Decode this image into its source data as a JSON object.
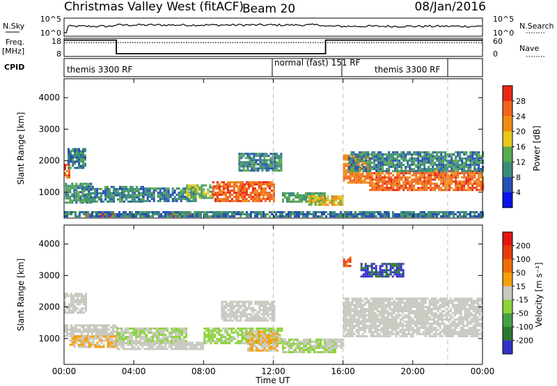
{
  "header": {
    "station": "Christmas Valley West (fitACF)",
    "beam": "Beam 20",
    "date": "08/Jan/2016"
  },
  "nsky_panel": {
    "left_label": "N.Sky",
    "right_label": "N.Search",
    "left_ticks": [
      "10^5",
      "10^0"
    ],
    "right_ticks": [
      "10^5",
      "10^0"
    ]
  },
  "freq_panel": {
    "label_line1": "Freq.",
    "label_line2": "[MHz]",
    "left_ticks": [
      "18",
      "8"
    ],
    "right_ticks": [
      "60",
      "0"
    ],
    "right_label": "Nave"
  },
  "cpid_panel": {
    "label": "CPID",
    "segments": [
      "themis 3300 RF",
      "normal (fast) 151 RF",
      "themis 3300 RF"
    ]
  },
  "power_panel": {
    "ylabel": "Slant Range [km]",
    "yticks": [
      "1000",
      "2000",
      "3000",
      "4000"
    ],
    "colorbar_label": "Power [dB]",
    "colorbar_ticks": [
      "4",
      "8",
      "12",
      "16",
      "20",
      "24",
      "28"
    ]
  },
  "velocity_panel": {
    "ylabel": "Slant Range [km]",
    "yticks": [
      "1000",
      "2000",
      "3000",
      "4000"
    ],
    "colorbar_label": "Velocity [m s⁻¹]",
    "colorbar_ticks": [
      "200",
      "100",
      "50",
      "15",
      "-15",
      "-50",
      "-100",
      "-200"
    ]
  },
  "xaxis": {
    "label": "Time UT",
    "ticks": [
      "00:00",
      "04:00",
      "08:00",
      "12:00",
      "16:00",
      "20:00",
      "00:00"
    ]
  },
  "chart_data": {
    "type": "heatmap",
    "title": "Christmas Valley West (fitACF) Beam 20 08/Jan/2016",
    "x_range_hours": [
      0,
      24
    ],
    "y_range_km": [
      180,
      4600
    ],
    "x_ticks_hours": [
      0,
      4,
      8,
      12,
      16,
      20,
      24
    ],
    "y_ticks_km": [
      1000,
      2000,
      3000,
      4000
    ],
    "cpid_segments": [
      {
        "name": "themis 3300 RF",
        "start_h": 0,
        "end_h": 12
      },
      {
        "name": "normal (fast) 151 RF",
        "start_h": 12,
        "end_h": 16
      },
      {
        "name": "themis 3300 RF",
        "start_h": 16,
        "end_h": 24
      }
    ],
    "mode_change_hours": [
      12,
      16,
      22
    ],
    "frequency_mhz": [
      {
        "start_h": 0,
        "end_h": 3.0,
        "value": 17
      },
      {
        "start_h": 3.0,
        "end_h": 15.0,
        "value": 9.5
      },
      {
        "start_h": 15.0,
        "end_h": 24,
        "value": 17
      }
    ],
    "nave": [
      {
        "start_h": 0,
        "end_h": 3.0,
        "value": 32
      },
      {
        "start_h": 3.0,
        "end_h": 15.0,
        "value": 32
      },
      {
        "start_h": 15.0,
        "end_h": 24,
        "value": 32
      }
    ],
    "power": {
      "label": "Power [dB]",
      "range": [
        0,
        32
      ],
      "colors": [
        "#0a14e6",
        "#2850b4",
        "#3c8c7a",
        "#5aaa50",
        "#e6c81e",
        "#f08c14",
        "#f0641e",
        "#e62814"
      ],
      "regions": [
        {
          "x": [
            0.05,
            1.5
          ],
          "y": [
            650,
            1300
          ],
          "value": 11
        },
        {
          "x": [
            0.0,
            0.3
          ],
          "y": [
            1500,
            1900
          ],
          "value": 26
        },
        {
          "x": [
            0.2,
            1.2
          ],
          "y": [
            1800,
            2400
          ],
          "value": 9
        },
        {
          "x": [
            1.0,
            4.5
          ],
          "y": [
            700,
            1200
          ],
          "value": 10
        },
        {
          "x": [
            4.5,
            7.5
          ],
          "y": [
            750,
            1150
          ],
          "value": 9
        },
        {
          "x": [
            7.0,
            8.5
          ],
          "y": [
            850,
            1250
          ],
          "value": 14
        },
        {
          "x": [
            8.5,
            12.0
          ],
          "y": [
            750,
            1350
          ],
          "value": 26
        },
        {
          "x": [
            10.0,
            12.5
          ],
          "y": [
            1700,
            2250
          ],
          "value": 10
        },
        {
          "x": [
            12.5,
            15.0
          ],
          "y": [
            700,
            1000
          ],
          "value": 12
        },
        {
          "x": [
            14.0,
            16.0
          ],
          "y": [
            600,
            900
          ],
          "value": 18
        },
        {
          "x": [
            16.0,
            17.5
          ],
          "y": [
            1300,
            2200
          ],
          "value": 24
        },
        {
          "x": [
            17.5,
            24.0
          ],
          "y": [
            1050,
            1700
          ],
          "value": 26
        },
        {
          "x": [
            16.3,
            24.0
          ],
          "y": [
            1700,
            2300
          ],
          "value": 10
        },
        {
          "x": [
            1.2,
            3.0
          ],
          "y": [
            250,
            340
          ],
          "value": 28
        },
        {
          "x": [
            5.8,
            7.2
          ],
          "y": [
            250,
            340
          ],
          "value": 28
        },
        {
          "x": [
            0.0,
            24.0
          ],
          "y": [
            250,
            400
          ],
          "value": 9
        }
      ]
    },
    "velocity": {
      "label": "Velocity [m s⁻¹]",
      "range": [
        -250,
        250
      ],
      "colors": [
        "#3232c8",
        "#2d7832",
        "#46a046",
        "#8cd23c",
        "#c8c8c0",
        "#f5a00a",
        "#ee6e0a",
        "#e63c0a",
        "#e61414"
      ],
      "regions": [
        {
          "x": [
            0.0,
            1.2
          ],
          "y": [
            1800,
            2450
          ],
          "value": 0
        },
        {
          "x": [
            0.0,
            3.0
          ],
          "y": [
            1100,
            1450
          ],
          "value": 0
        },
        {
          "x": [
            0.3,
            3.0
          ],
          "y": [
            750,
            1100
          ],
          "value": 30
        },
        {
          "x": [
            3.0,
            7.0
          ],
          "y": [
            850,
            1350
          ],
          "value": -30
        },
        {
          "x": [
            3.0,
            8.0
          ],
          "y": [
            700,
            900
          ],
          "value": 0
        },
        {
          "x": [
            8.0,
            12.5
          ],
          "y": [
            850,
            1350
          ],
          "value": -40
        },
        {
          "x": [
            10.5,
            12.2
          ],
          "y": [
            650,
            1250
          ],
          "value": 30
        },
        {
          "x": [
            9.0,
            12.0
          ],
          "y": [
            1600,
            2200
          ],
          "value": 0
        },
        {
          "x": [
            12.5,
            15.5
          ],
          "y": [
            600,
            1000
          ],
          "value": -30
        },
        {
          "x": [
            15.0,
            16.0
          ],
          "y": [
            700,
            1000
          ],
          "value": 0
        },
        {
          "x": [
            16.0,
            24.0
          ],
          "y": [
            1100,
            2300
          ],
          "value": 0
        },
        {
          "x": [
            16.0,
            16.4
          ],
          "y": [
            3300,
            3600
          ],
          "value": 150
        },
        {
          "x": [
            17.0,
            19.5
          ],
          "y": [
            3000,
            3400
          ],
          "value": -200
        }
      ]
    }
  }
}
